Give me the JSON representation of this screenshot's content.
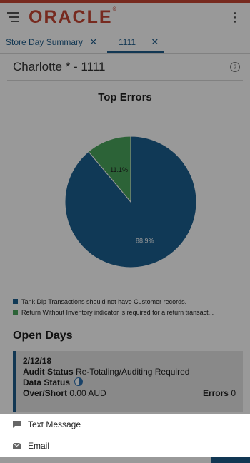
{
  "header": {
    "logo_text": "ORACLE",
    "logo_mark": "®",
    "menu_icon": "hamburger-menu-icon",
    "more_icon": "kebab-more-icon"
  },
  "tabs": [
    {
      "label": "Store Day Summary",
      "close": "✕"
    },
    {
      "label": "1111",
      "close": "✕",
      "selected": true
    }
  ],
  "page": {
    "title": "Charlotte * - 1111",
    "help_icon": "question-circle-icon"
  },
  "chart": {
    "title": "Top Errors"
  },
  "chart_data": {
    "type": "pie",
    "title": "Top Errors",
    "slices": [
      {
        "label": "Tank Dip Transactions should not have Customer records.",
        "value": 88.9,
        "display": "88.9%",
        "color": "#1b5f8f"
      },
      {
        "label": "Return Without Inventory indicator is required for a return transact...",
        "value": 11.1,
        "display": "11.1%",
        "color": "#4aa55c"
      }
    ],
    "legend_position": "bottom"
  },
  "open_days": {
    "title": "Open Days",
    "card": {
      "date": "2/12/18",
      "audit_status_label": "Audit Status",
      "audit_status_value": "Re-Totaling/Auditing Required",
      "data_status_label": "Data Status",
      "data_status_icon": "half-circle-icon",
      "over_short_label": "Over/Short",
      "over_short_value": "0.00 AUD",
      "errors_label": "Errors",
      "errors_value": "0"
    }
  },
  "share_sheet": {
    "items": [
      {
        "label": "Text Message",
        "icon": "chat-bubble-icon"
      },
      {
        "label": "Email",
        "icon": "envelope-icon"
      }
    ]
  }
}
